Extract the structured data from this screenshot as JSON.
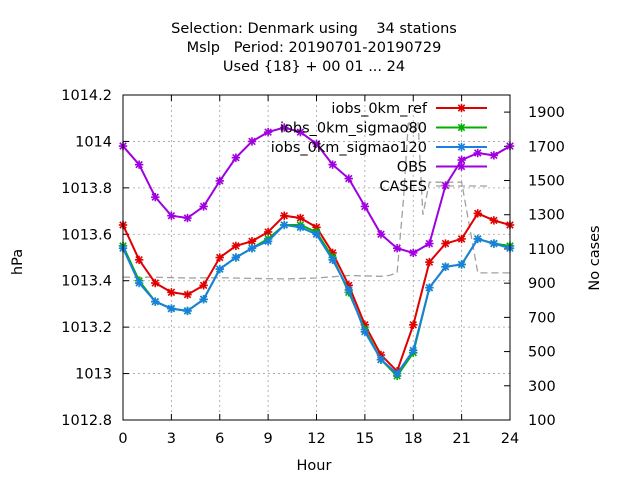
{
  "chart_data": {
    "type": "line",
    "title": [
      "Selection: Denmark using    34 stations",
      "Mslp   Period: 20190701-20190729",
      "Used {18} + 00 01 ... 24"
    ],
    "xlabel": "Hour",
    "ylabel": "hPa",
    "y2label": "No cases",
    "xlim": [
      0,
      24
    ],
    "ylim": [
      1012.8,
      1014.2
    ],
    "y2lim": [
      100,
      2000
    ],
    "x_ticks": [
      0,
      3,
      6,
      9,
      12,
      15,
      18,
      21,
      24
    ],
    "y_ticks": [
      1012.8,
      1013,
      1013.2,
      1013.4,
      1013.6,
      1013.8,
      1014,
      1014.2
    ],
    "y_tick_labels": [
      "1012.8",
      "1013",
      "1013.2",
      "1013.4",
      "1013.6",
      "1013.8",
      "1014",
      "1014.2"
    ],
    "y2_ticks": [
      100,
      300,
      500,
      700,
      900,
      1100,
      1300,
      1500,
      1700,
      1900
    ],
    "grid": true,
    "legend_position": "top-right",
    "x": [
      0,
      1,
      2,
      3,
      4,
      5,
      6,
      7,
      8,
      9,
      10,
      11,
      12,
      13,
      14,
      15,
      16,
      17,
      18,
      19,
      20,
      21,
      22,
      23,
      24
    ],
    "series": [
      {
        "name": "iobs_0km_ref",
        "color": "#e00000",
        "marker": "x",
        "values": [
          1013.64,
          1013.49,
          1013.39,
          1013.35,
          1013.34,
          1013.38,
          1013.5,
          1013.55,
          1013.57,
          1013.61,
          1013.68,
          1013.67,
          1013.63,
          1013.52,
          1013.38,
          1013.21,
          1013.08,
          1013.01,
          1013.21,
          1013.48,
          1013.56,
          1013.58,
          1013.69,
          1013.66,
          1013.64
        ]
      },
      {
        "name": "iobs_0km_sigmao80",
        "color": "#00b000",
        "marker": "x",
        "values": [
          1013.55,
          1013.4,
          1013.31,
          1013.28,
          1013.27,
          1013.32,
          1013.45,
          1013.5,
          1013.54,
          1013.58,
          1013.64,
          1013.64,
          1013.61,
          1013.5,
          1013.35,
          1013.19,
          1013.06,
          1012.99,
          1013.09,
          1013.37,
          1013.46,
          1013.47,
          1013.58,
          1013.56,
          1013.55
        ]
      },
      {
        "name": "iobs_0km_sigmao120",
        "color": "#1a80e0",
        "marker": "x",
        "values": [
          1013.54,
          1013.39,
          1013.31,
          1013.28,
          1013.27,
          1013.32,
          1013.45,
          1013.5,
          1013.54,
          1013.57,
          1013.64,
          1013.63,
          1013.6,
          1013.49,
          1013.36,
          1013.18,
          1013.06,
          1013.0,
          1013.1,
          1013.37,
          1013.46,
          1013.47,
          1013.58,
          1013.56,
          1013.54
        ]
      },
      {
        "name": "OBS",
        "color": "#a000e0",
        "marker": "x",
        "values": [
          1013.98,
          1013.9,
          1013.76,
          1013.68,
          1013.67,
          1013.72,
          1013.83,
          1013.93,
          1014.0,
          1014.04,
          1014.06,
          1014.04,
          1013.99,
          1013.9,
          1013.84,
          1013.72,
          1013.6,
          1013.54,
          1013.52,
          1013.56,
          1013.81,
          1013.92,
          1013.95,
          1013.94,
          1013.98
        ]
      }
    ],
    "cases": {
      "name": "CASES",
      "color": "#a0a0a0",
      "axis": "y2",
      "style": "dashed",
      "x": [
        0,
        2,
        4,
        6,
        8,
        10,
        12,
        14,
        16,
        16.5,
        17,
        17.4,
        17.7,
        18,
        18.3,
        18.6,
        19,
        19.5,
        20,
        21,
        22,
        23,
        24
      ],
      "values": [
        935,
        935,
        930,
        932,
        928,
        925,
        930,
        945,
        940,
        945,
        960,
        1400,
        1850,
        1780,
        1840,
        1300,
        1490,
        1490,
        1490,
        1490,
        960,
        960,
        960
      ]
    }
  }
}
